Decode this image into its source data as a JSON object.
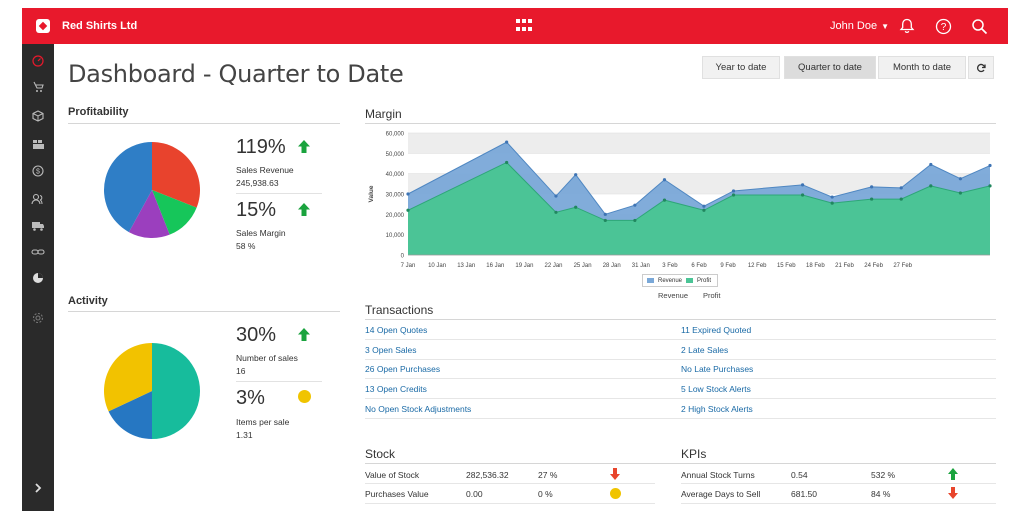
{
  "app": {
    "name": "Red Shirts Ltd",
    "user": "John Doe"
  },
  "header": {
    "title": "Dashboard - Quarter to Date",
    "ranges": [
      "Year to date",
      "Quarter to date",
      "Month to date"
    ],
    "active_range": "Quarter to date"
  },
  "icons": {
    "topbar": [
      "apps-grid-icon",
      "bell-icon",
      "help-icon",
      "search-icon"
    ],
    "sidebar": [
      "speedometer-icon",
      "sales-icon",
      "box-icon",
      "warehouse-icon",
      "dollar-icon",
      "users-icon",
      "truck-icon",
      "link-icon",
      "reports-pie-icon",
      "gear-icon",
      "chevron-right-icon"
    ]
  },
  "colors": {
    "brand": "#e8192c",
    "sidebar": "#2a2a2a",
    "link": "#1a6aa6",
    "up": "#1aa33e",
    "down": "#e8452c",
    "neutral": "#f0c400"
  },
  "profitability": {
    "heading": "Profitability",
    "stats": [
      {
        "value": "119%",
        "label": "Sales Revenue",
        "sub": "245,938.63",
        "trend": "up"
      },
      {
        "value": "15%",
        "label": "Sales Margin",
        "sub": "58 %",
        "trend": "up"
      }
    ],
    "pie": [
      {
        "color": "#e8432d",
        "value": 0.31
      },
      {
        "color": "#16c65a",
        "value": 0.13
      },
      {
        "color": "#9b3fbe",
        "value": 0.14
      },
      {
        "color": "#2f7ec6",
        "value": 0.42
      }
    ]
  },
  "activity": {
    "heading": "Activity",
    "stats": [
      {
        "value": "30%",
        "label": "Number of sales",
        "sub": "16",
        "trend": "up"
      },
      {
        "value": "3%",
        "label": "Items per sale",
        "sub": "1.31",
        "trend": "neutral"
      }
    ],
    "pie": [
      {
        "color": "#17bc9c",
        "value": 0.5
      },
      {
        "color": "#2677c2",
        "value": 0.18
      },
      {
        "color": "#f2c200",
        "value": 0.32
      }
    ]
  },
  "transactions": {
    "heading": "Transactions",
    "left": [
      "14 Open Quotes",
      "3 Open Sales",
      "26 Open Purchases",
      "13 Open Credits",
      "No Open Stock Adjustments"
    ],
    "right": [
      "11 Expired Quoted",
      "2 Late Sales",
      "No Late Purchases",
      "5 Low Stock Alerts",
      "2 High Stock Alerts"
    ]
  },
  "stock": {
    "heading": "Stock",
    "rows": [
      {
        "label": "Value of Stock",
        "value": "282,536.32",
        "pct": "27 %",
        "trend": "down"
      },
      {
        "label": "Purchases Value",
        "value": "0.00",
        "pct": "0 %",
        "trend": "neutral"
      }
    ]
  },
  "kpis": {
    "heading": "KPIs",
    "rows": [
      {
        "label": "Annual Stock Turns",
        "value": "0.54",
        "pct": "532 %",
        "trend": "up"
      },
      {
        "label": "Average Days to Sell",
        "value": "681.50",
        "pct": "84 %",
        "trend": "down"
      }
    ]
  },
  "chart_data": {
    "type": "area",
    "title": "Margin",
    "ylabel": "Value",
    "ylim": [
      0,
      60000
    ],
    "yticks": [
      0,
      10000,
      20000,
      30000,
      40000,
      50000,
      60000
    ],
    "ytick_labels": [
      "0",
      "10,000",
      "20,000",
      "30,000",
      "40,000",
      "50,000",
      "60,000"
    ],
    "xtick_labels": [
      "7 Jan",
      "10 Jan",
      "13 Jan",
      "16 Jan",
      "19 Jan",
      "22 Jan",
      "25 Jan",
      "28 Jan",
      "31 Jan",
      "3 Feb",
      "6 Feb",
      "9 Feb",
      "12 Feb",
      "15 Feb",
      "18 Feb",
      "21 Feb",
      "24 Feb",
      "27 Feb"
    ],
    "x": [
      7,
      17,
      22,
      24,
      27,
      30,
      33,
      37,
      40,
      47,
      50,
      54,
      57,
      60,
      63,
      66
    ],
    "series": [
      {
        "name": "Revenue",
        "color": "#7aa8d8",
        "values": [
          30000,
          55500,
          29000,
          39500,
          20000,
          24500,
          37000,
          24000,
          31500,
          34500,
          28500,
          33500,
          33000,
          44500,
          37500,
          44000
        ]
      },
      {
        "name": "Profit",
        "color": "#4bc496",
        "values": [
          22000,
          45500,
          21000,
          23500,
          17000,
          17000,
          27000,
          22000,
          29500,
          29500,
          25500,
          27500,
          27500,
          34000,
          30500,
          34000
        ]
      }
    ],
    "legend": [
      "Revenue",
      "Profit"
    ],
    "legend_position": "bottom-center",
    "grid": true
  }
}
